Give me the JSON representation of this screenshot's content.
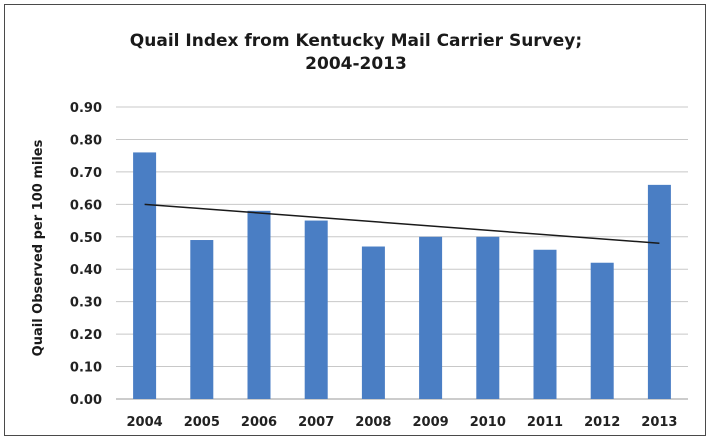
{
  "chart_data": {
    "type": "bar",
    "title_lines": [
      "Quail Index from Kentucky Mail Carrier Survey;",
      "2004-2013"
    ],
    "xlabel": "",
    "ylabel": "Quail Observed per 100 miles",
    "categories": [
      "2004",
      "2005",
      "2006",
      "2007",
      "2008",
      "2009",
      "2010",
      "2011",
      "2012",
      "2013"
    ],
    "values": [
      0.76,
      0.49,
      0.58,
      0.55,
      0.47,
      0.5,
      0.5,
      0.46,
      0.42,
      0.66
    ],
    "ylim": [
      0,
      0.9
    ],
    "yticks": [
      "0.00",
      "0.10",
      "0.20",
      "0.30",
      "0.40",
      "0.50",
      "0.60",
      "0.70",
      "0.80",
      "0.90"
    ],
    "trendline": {
      "type": "linear",
      "start": 0.6,
      "end": 0.48
    },
    "grid": true,
    "legend": "none",
    "colors": {
      "bar": "#4a7ec4",
      "grid": "#c8c8c8",
      "trend": "#1a1a1a"
    }
  }
}
